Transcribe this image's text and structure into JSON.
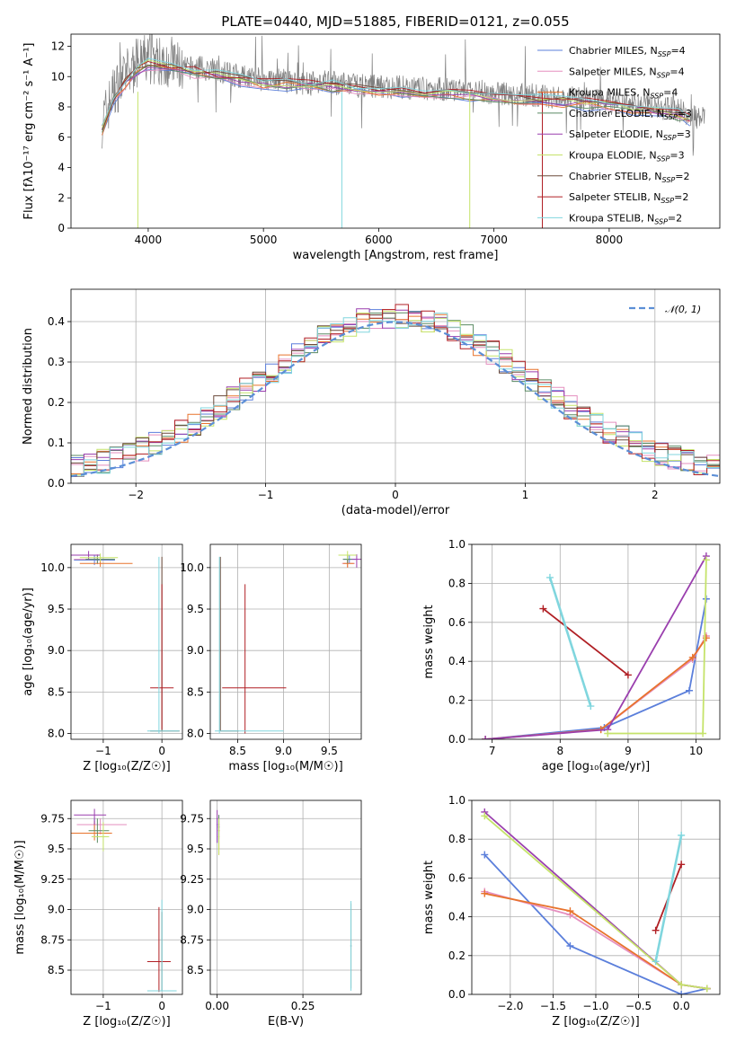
{
  "figure": {
    "title": "PLATE=0440, MJD=51885, FIBERID=0121, z=0.055"
  },
  "models": [
    {
      "name": "Chabrier MILES",
      "nssp": "4",
      "color": "#5b7fdb"
    },
    {
      "name": "Salpeter MILES",
      "nssp": "4",
      "color": "#e58fbf"
    },
    {
      "name": "Kroupa MILES",
      "nssp": "4",
      "color": "#e8732c"
    },
    {
      "name": "Chabrier ELODIE",
      "nssp": "3",
      "color": "#5a8a63"
    },
    {
      "name": "Salpeter ELODIE",
      "nssp": "3",
      "color": "#9a3fae"
    },
    {
      "name": "Kroupa ELODIE",
      "nssp": "3",
      "color": "#c5e36a"
    },
    {
      "name": "Chabrier STELIB",
      "nssp": "2",
      "color": "#6b4a3a"
    },
    {
      "name": "Salpeter STELIB",
      "nssp": "2",
      "color": "#b01f24"
    },
    {
      "name": "Kroupa STELIB",
      "nssp": "2",
      "color": "#80d6de"
    }
  ],
  "chart_data": [
    {
      "id": "spectrum",
      "type": "line",
      "title": "PLATE=0440, MJD=51885, FIBERID=0121, z=0.055",
      "xlabel": "wavelength [Angstrom, rest frame]",
      "ylabel": "Flux [fλ10⁻¹⁷ erg cm⁻² s⁻¹ A⁻¹]",
      "xlim": [
        3330,
        8960
      ],
      "ylim": [
        0,
        12.8
      ],
      "xticks": [
        4000,
        5000,
        6000,
        7000,
        8000
      ],
      "yticks": [
        0,
        2,
        4,
        6,
        8,
        10,
        12
      ],
      "data_color": "#808080",
      "data_x": [
        3600,
        3700,
        3800,
        3900,
        4000,
        4100,
        4200,
        4300,
        4400,
        4500,
        4600,
        4700,
        4800,
        4900,
        5000,
        5100,
        5200,
        5300,
        5400,
        5500,
        5600,
        5700,
        5800,
        5900,
        6000,
        6100,
        6200,
        6300,
        6400,
        6500,
        6600,
        6700,
        6800,
        6900,
        7000,
        7100,
        7200,
        7300,
        7400,
        7500,
        7600,
        7700,
        7800,
        7900,
        8000,
        8100,
        8200,
        8300,
        8400,
        8500,
        8600,
        8700,
        8800
      ],
      "data_y": [
        7.0,
        9.0,
        10.0,
        10.8,
        11.2,
        11.0,
        11.0,
        10.5,
        10.6,
        10.5,
        10.4,
        10.2,
        10.0,
        10.0,
        9.8,
        9.8,
        9.7,
        9.6,
        9.5,
        9.7,
        9.6,
        9.5,
        9.4,
        9.4,
        9.4,
        9.3,
        9.3,
        9.2,
        9.2,
        9.2,
        9.1,
        9.1,
        9.0,
        9.0,
        8.9,
        8.9,
        8.8,
        8.8,
        8.7,
        8.7,
        8.6,
        8.6,
        8.5,
        8.5,
        8.4,
        8.3,
        8.2,
        8.2,
        8.0,
        7.9,
        7.8,
        7.5,
        7.2
      ],
      "model_x": [
        3600,
        3700,
        3800,
        3900,
        4000,
        4200,
        4400,
        4600,
        4800,
        5000,
        5200,
        5400,
        5600,
        5800,
        6000,
        6200,
        6400,
        6600,
        6800,
        7000,
        7200,
        7400,
        7600,
        7800,
        8000,
        8200,
        8400,
        8600,
        8700
      ],
      "model_y": [
        6.5,
        8.5,
        9.6,
        10.3,
        10.8,
        10.6,
        10.3,
        10.0,
        9.8,
        9.6,
        9.5,
        9.4,
        9.3,
        9.2,
        9.1,
        9.0,
        8.9,
        8.8,
        8.7,
        8.6,
        8.5,
        8.4,
        8.3,
        8.2,
        8.1,
        7.9,
        7.7,
        7.4,
        7.2
      ]
    },
    {
      "id": "residuals",
      "type": "line",
      "xlabel": "(data-model)/error",
      "ylabel": "Normed distribution",
      "xlim": [
        -2.5,
        2.5
      ],
      "ylim": [
        0,
        0.48
      ],
      "xticks": [
        -2,
        -1,
        0,
        1,
        2
      ],
      "yticks": [
        0.0,
        0.1,
        0.2,
        0.3,
        0.4
      ],
      "grid": true,
      "legend": "𝒩(0, 1)",
      "legend_position": "top-right",
      "normal_color": "#5b8ed6"
    },
    {
      "id": "age-vs-Z",
      "type": "scatter",
      "xlabel": "Z [log₁₀(Z/Z☉)]",
      "ylabel": "age  [log₁₀(age/yr)]",
      "xlim": [
        -1.55,
        0.35
      ],
      "ylim": [
        7.93,
        10.28
      ],
      "xticks": [
        -1,
        0
      ],
      "yticks": [
        8.0,
        8.5,
        9.0,
        9.5,
        10.0
      ],
      "grid": true
    },
    {
      "id": "age-vs-mass",
      "type": "scatter",
      "xlabel": "mass [log₁₀(M/M☉)]",
      "xlim": [
        8.2,
        9.85
      ],
      "ylim": [
        7.93,
        10.28
      ],
      "xticks": [
        8.5,
        9.0,
        9.5
      ],
      "yticks": [
        8.0,
        8.5,
        9.0,
        9.5,
        10.0
      ],
      "grid": true
    },
    {
      "id": "weight-vs-age",
      "type": "line",
      "xlabel": "age  [log₁₀(age/yr)]",
      "ylabel": "mass weight",
      "xlim": [
        6.7,
        10.35
      ],
      "ylim": [
        0,
        1.0
      ],
      "xticks": [
        7,
        8,
        9,
        10
      ],
      "yticks": [
        0.0,
        0.2,
        0.4,
        0.6,
        0.8,
        1.0
      ],
      "grid": true,
      "series": [
        {
          "name": "Chabrier MILES",
          "x": [
            6.9,
            8.65,
            9.9,
            10.15
          ],
          "y": [
            0.0,
            0.06,
            0.25,
            0.72
          ]
        },
        {
          "name": "Salpeter MILES",
          "x": [
            6.9,
            8.6,
            9.95,
            10.15
          ],
          "y": [
            0.0,
            0.05,
            0.41,
            0.53
          ]
        },
        {
          "name": "Kroupa MILES",
          "x": [
            6.9,
            8.6,
            9.95,
            10.15
          ],
          "y": [
            0.0,
            0.05,
            0.42,
            0.52
          ]
        },
        {
          "name": "Salpeter ELODIE",
          "x": [
            6.9,
            8.7,
            10.15
          ],
          "y": [
            0.0,
            0.05,
            0.94
          ]
        },
        {
          "name": "Kroupa ELODIE",
          "x": [
            8.7,
            10.1,
            10.15
          ],
          "y": [
            0.03,
            0.03,
            0.92
          ]
        },
        {
          "name": "Salpeter STELIB",
          "x": [
            7.75,
            9.0
          ],
          "y": [
            0.67,
            0.33
          ]
        },
        {
          "name": "Kroupa STELIB",
          "x": [
            7.85,
            8.45
          ],
          "y": [
            0.83,
            0.17
          ]
        }
      ]
    },
    {
      "id": "mass-vs-Z",
      "type": "scatter",
      "xlabel": "Z [log₁₀(Z/Z☉)]",
      "ylabel": "mass [log₁₀(M/M☉)]",
      "xlim": [
        -1.55,
        0.35
      ],
      "ylim": [
        8.3,
        9.9
      ],
      "xticks": [
        -1,
        0
      ],
      "yticks": [
        8.5,
        8.75,
        9.0,
        9.25,
        9.5,
        9.75
      ],
      "grid": true
    },
    {
      "id": "mass-vs-ebv",
      "type": "scatter",
      "xlabel": "E(B-V)",
      "xlim": [
        -0.02,
        0.42
      ],
      "ylim": [
        8.3,
        9.9
      ],
      "xticks": [
        0.0,
        0.25
      ],
      "yticks": [
        8.5,
        8.75,
        9.0,
        9.25,
        9.5,
        9.75
      ],
      "grid": true
    },
    {
      "id": "weight-vs-Z",
      "type": "line",
      "xlabel": "Z [log₁₀(Z/Z☉)]",
      "ylabel": "mass weight",
      "xlim": [
        -2.45,
        0.45
      ],
      "ylim": [
        0,
        1.0
      ],
      "xticks": [
        -2.0,
        -1.5,
        -1.0,
        -0.5,
        0.0
      ],
      "yticks": [
        0.0,
        0.2,
        0.4,
        0.6,
        0.8,
        1.0
      ],
      "grid": true,
      "series": [
        {
          "name": "Chabrier MILES",
          "x": [
            -2.3,
            -1.3,
            0.0,
            0.3
          ],
          "y": [
            0.72,
            0.25,
            0.0,
            0.03
          ]
        },
        {
          "name": "Salpeter MILES",
          "x": [
            -2.3,
            -1.3,
            0.0,
            0.3
          ],
          "y": [
            0.53,
            0.41,
            0.05,
            0.03
          ]
        },
        {
          "name": "Kroupa MILES",
          "x": [
            -2.3,
            -1.3,
            0.0,
            0.3
          ],
          "y": [
            0.52,
            0.43,
            0.05,
            0.03
          ]
        },
        {
          "name": "Salpeter ELODIE",
          "x": [
            -2.3,
            0.0,
            0.3
          ],
          "y": [
            0.94,
            0.05,
            0.03
          ]
        },
        {
          "name": "Kroupa ELODIE",
          "x": [
            -2.3,
            0.0,
            0.3
          ],
          "y": [
            0.92,
            0.05,
            0.03
          ]
        },
        {
          "name": "Salpeter STELIB",
          "x": [
            -0.3,
            0.0
          ],
          "y": [
            0.33,
            0.67
          ]
        },
        {
          "name": "Kroupa STELIB",
          "x": [
            -0.3,
            0.0
          ],
          "y": [
            0.17,
            0.82
          ]
        }
      ]
    }
  ]
}
